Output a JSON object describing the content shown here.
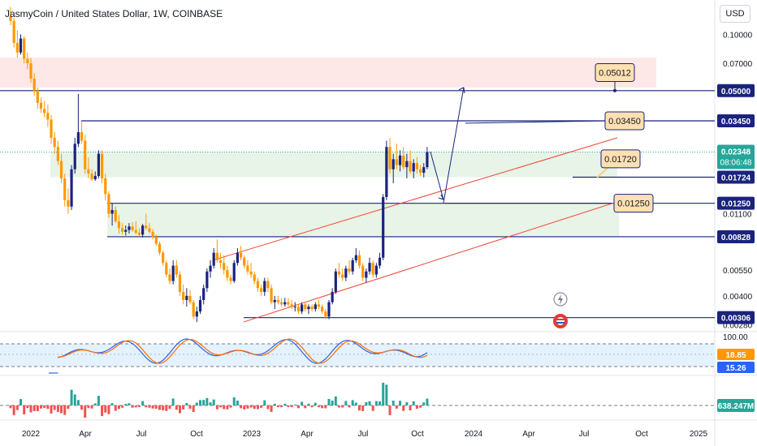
{
  "header": {
    "title": "JasmyCoin / United States Dollar, 1W, COINBASE",
    "currency": "USD"
  },
  "chart_data": {
    "type": "candlestick",
    "yscale": "log",
    "price_ticks": [
      "0.10000",
      "0.07000",
      "0.05000",
      "0.03450",
      "0.02350",
      "0.01724",
      "0.01250",
      "0.01100",
      "0.00828",
      "0.00550",
      "0.00400",
      "0.00306",
      "0.00280"
    ],
    "x_ticks": [
      "2022",
      "Apr",
      "Jul",
      "Oct",
      "2023",
      "Apr",
      "Jul",
      "Oct",
      "2024",
      "Apr",
      "Jul",
      "Oct",
      "2025"
    ],
    "level_lines": [
      "0.05000",
      "0.03450",
      "0.01724",
      "0.01250",
      "0.00828",
      "0.00306"
    ],
    "current_price": "0.02348",
    "countdown": "08:06:48",
    "target_labels": [
      "0.05012",
      "0.03450",
      "0.01720",
      "0.01250"
    ],
    "candles_weekly": [
      [
        0.125,
        0.14,
        0.112,
        0.118
      ],
      [
        0.118,
        0.122,
        0.085,
        0.09
      ],
      [
        0.09,
        0.105,
        0.075,
        0.08
      ],
      [
        0.08,
        0.1,
        0.078,
        0.095
      ],
      [
        0.095,
        0.098,
        0.07,
        0.074
      ],
      [
        0.074,
        0.08,
        0.065,
        0.07
      ],
      [
        0.07,
        0.075,
        0.055,
        0.058
      ],
      [
        0.058,
        0.062,
        0.047,
        0.05
      ],
      [
        0.05,
        0.052,
        0.04,
        0.043
      ],
      [
        0.043,
        0.046,
        0.038,
        0.04
      ],
      [
        0.04,
        0.044,
        0.036,
        0.038
      ],
      [
        0.038,
        0.042,
        0.032,
        0.035
      ],
      [
        0.035,
        0.037,
        0.026,
        0.028
      ],
      [
        0.028,
        0.03,
        0.023,
        0.025
      ],
      [
        0.025,
        0.027,
        0.02,
        0.021
      ],
      [
        0.021,
        0.023,
        0.016,
        0.017
      ],
      [
        0.017,
        0.018,
        0.012,
        0.013
      ],
      [
        0.013,
        0.015,
        0.011,
        0.012
      ],
      [
        0.012,
        0.02,
        0.0115,
        0.019
      ],
      [
        0.019,
        0.028,
        0.018,
        0.026
      ],
      [
        0.026,
        0.048,
        0.025,
        0.03
      ],
      [
        0.03,
        0.034,
        0.026,
        0.027
      ],
      [
        0.027,
        0.029,
        0.018,
        0.019
      ],
      [
        0.019,
        0.022,
        0.017,
        0.018
      ],
      [
        0.018,
        0.019,
        0.0165,
        0.0168
      ],
      [
        0.0168,
        0.0185,
        0.0165,
        0.0175
      ],
      [
        0.0175,
        0.024,
        0.017,
        0.023
      ],
      [
        0.023,
        0.024,
        0.016,
        0.017
      ],
      [
        0.017,
        0.018,
        0.013,
        0.014
      ],
      [
        0.014,
        0.0145,
        0.0105,
        0.011
      ],
      [
        0.011,
        0.0125,
        0.0095,
        0.0115
      ],
      [
        0.0115,
        0.012,
        0.0098,
        0.01
      ],
      [
        0.01,
        0.0108,
        0.0086,
        0.0092
      ],
      [
        0.0092,
        0.0098,
        0.0085,
        0.0088
      ],
      [
        0.0088,
        0.0095,
        0.0084,
        0.009
      ],
      [
        0.009,
        0.0098,
        0.0086,
        0.0094
      ],
      [
        0.0094,
        0.0099,
        0.0088,
        0.009
      ],
      [
        0.009,
        0.01,
        0.0085,
        0.0087
      ],
      [
        0.0087,
        0.0092,
        0.0083,
        0.0085
      ],
      [
        0.0085,
        0.0097,
        0.0082,
        0.0095
      ],
      [
        0.0095,
        0.011,
        0.009,
        0.0092
      ],
      [
        0.0092,
        0.0098,
        0.0086,
        0.0088
      ],
      [
        0.0088,
        0.0091,
        0.008,
        0.0082
      ],
      [
        0.0082,
        0.0085,
        0.0074,
        0.0076
      ],
      [
        0.0076,
        0.0078,
        0.0066,
        0.0068
      ],
      [
        0.0068,
        0.007,
        0.0058,
        0.006
      ],
      [
        0.006,
        0.0062,
        0.005,
        0.0052
      ],
      [
        0.0052,
        0.0056,
        0.0046,
        0.0048
      ],
      [
        0.0048,
        0.0062,
        0.0046,
        0.0058
      ],
      [
        0.0058,
        0.0062,
        0.005,
        0.0052
      ],
      [
        0.0052,
        0.0054,
        0.004,
        0.0042
      ],
      [
        0.0042,
        0.0046,
        0.0036,
        0.0038
      ],
      [
        0.0038,
        0.0044,
        0.0035,
        0.004
      ],
      [
        0.004,
        0.0043,
        0.0036,
        0.0037
      ],
      [
        0.0037,
        0.0038,
        0.003,
        0.0031
      ],
      [
        0.0031,
        0.0035,
        0.0029,
        0.0033
      ],
      [
        0.0033,
        0.004,
        0.0032,
        0.0038
      ],
      [
        0.0038,
        0.0046,
        0.0036,
        0.0044
      ],
      [
        0.0044,
        0.0056,
        0.0042,
        0.0054
      ],
      [
        0.0054,
        0.0062,
        0.005,
        0.0058
      ],
      [
        0.0058,
        0.0072,
        0.0056,
        0.0068
      ],
      [
        0.0068,
        0.008,
        0.006,
        0.0062
      ],
      [
        0.0062,
        0.0068,
        0.0056,
        0.006
      ],
      [
        0.006,
        0.0066,
        0.0052,
        0.0055
      ],
      [
        0.0055,
        0.0058,
        0.0048,
        0.005
      ],
      [
        0.005,
        0.0052,
        0.0046,
        0.0048
      ],
      [
        0.0048,
        0.0062,
        0.0047,
        0.006
      ],
      [
        0.006,
        0.0072,
        0.0058,
        0.0068
      ],
      [
        0.0068,
        0.0074,
        0.0062,
        0.0064
      ],
      [
        0.0064,
        0.0066,
        0.0056,
        0.0058
      ],
      [
        0.0058,
        0.0062,
        0.0052,
        0.0054
      ],
      [
        0.0054,
        0.006,
        0.005,
        0.0052
      ],
      [
        0.0052,
        0.0054,
        0.0046,
        0.0048
      ],
      [
        0.0048,
        0.005,
        0.0042,
        0.0044
      ],
      [
        0.0044,
        0.0046,
        0.004,
        0.0042
      ],
      [
        0.0042,
        0.005,
        0.004,
        0.0048
      ],
      [
        0.0048,
        0.005,
        0.0042,
        0.0044
      ],
      [
        0.0044,
        0.0046,
        0.0036,
        0.0037
      ],
      [
        0.0037,
        0.004,
        0.0034,
        0.0038
      ],
      [
        0.0038,
        0.004,
        0.0036,
        0.0037
      ],
      [
        0.0037,
        0.0039,
        0.0035,
        0.0036
      ],
      [
        0.0036,
        0.0039,
        0.0035,
        0.0037
      ],
      [
        0.0037,
        0.0039,
        0.0035,
        0.0036
      ],
      [
        0.0036,
        0.0038,
        0.0034,
        0.0035
      ],
      [
        0.0035,
        0.0037,
        0.0033,
        0.0035
      ],
      [
        0.0035,
        0.0036,
        0.0032,
        0.0033
      ],
      [
        0.0033,
        0.0037,
        0.0032,
        0.0036
      ],
      [
        0.0036,
        0.0037,
        0.0033,
        0.0034
      ],
      [
        0.0034,
        0.0036,
        0.0032,
        0.0035
      ],
      [
        0.0035,
        0.0036,
        0.0033,
        0.0034
      ],
      [
        0.0034,
        0.0037,
        0.0033,
        0.0036
      ],
      [
        0.0036,
        0.0038,
        0.0034,
        0.0035
      ],
      [
        0.0035,
        0.0036,
        0.0032,
        0.0033
      ],
      [
        0.0033,
        0.0034,
        0.003,
        0.0031
      ],
      [
        0.0031,
        0.0038,
        0.003,
        0.0037
      ],
      [
        0.0037,
        0.0044,
        0.0036,
        0.0042
      ],
      [
        0.0042,
        0.0056,
        0.0041,
        0.0054
      ],
      [
        0.0054,
        0.006,
        0.005,
        0.0052
      ],
      [
        0.0052,
        0.0056,
        0.0048,
        0.005
      ],
      [
        0.005,
        0.0058,
        0.0048,
        0.0056
      ],
      [
        0.0056,
        0.0062,
        0.0052,
        0.0054
      ],
      [
        0.0054,
        0.0064,
        0.0052,
        0.0062
      ],
      [
        0.0062,
        0.0072,
        0.006,
        0.0066
      ],
      [
        0.0066,
        0.007,
        0.0056,
        0.0058
      ],
      [
        0.0058,
        0.006,
        0.0048,
        0.005
      ],
      [
        0.005,
        0.0056,
        0.0047,
        0.0054
      ],
      [
        0.0054,
        0.0064,
        0.0052,
        0.006
      ],
      [
        0.006,
        0.0062,
        0.005,
        0.0052
      ],
      [
        0.0052,
        0.006,
        0.005,
        0.0058
      ],
      [
        0.0058,
        0.0068,
        0.0056,
        0.0064
      ],
      [
        0.0064,
        0.014,
        0.0062,
        0.0135
      ],
      [
        0.0135,
        0.027,
        0.013,
        0.025
      ],
      [
        0.025,
        0.028,
        0.018,
        0.019
      ],
      [
        0.019,
        0.023,
        0.016,
        0.0215
      ],
      [
        0.0215,
        0.026,
        0.019,
        0.02
      ],
      [
        0.02,
        0.024,
        0.0185,
        0.0225
      ],
      [
        0.0225,
        0.025,
        0.019,
        0.0195
      ],
      [
        0.0195,
        0.023,
        0.017,
        0.021
      ],
      [
        0.021,
        0.024,
        0.018,
        0.0185
      ],
      [
        0.0185,
        0.0215,
        0.017,
        0.0205
      ],
      [
        0.0205,
        0.022,
        0.018,
        0.019
      ],
      [
        0.019,
        0.02,
        0.0175,
        0.0182
      ],
      [
        0.0182,
        0.0205,
        0.0172,
        0.0195
      ],
      [
        0.0195,
        0.025,
        0.019,
        0.02348
      ]
    ],
    "stoch": {
      "k": "18.85",
      "d": "15.26",
      "upper": "100.00"
    },
    "volume": {
      "value": "638.247M"
    }
  }
}
